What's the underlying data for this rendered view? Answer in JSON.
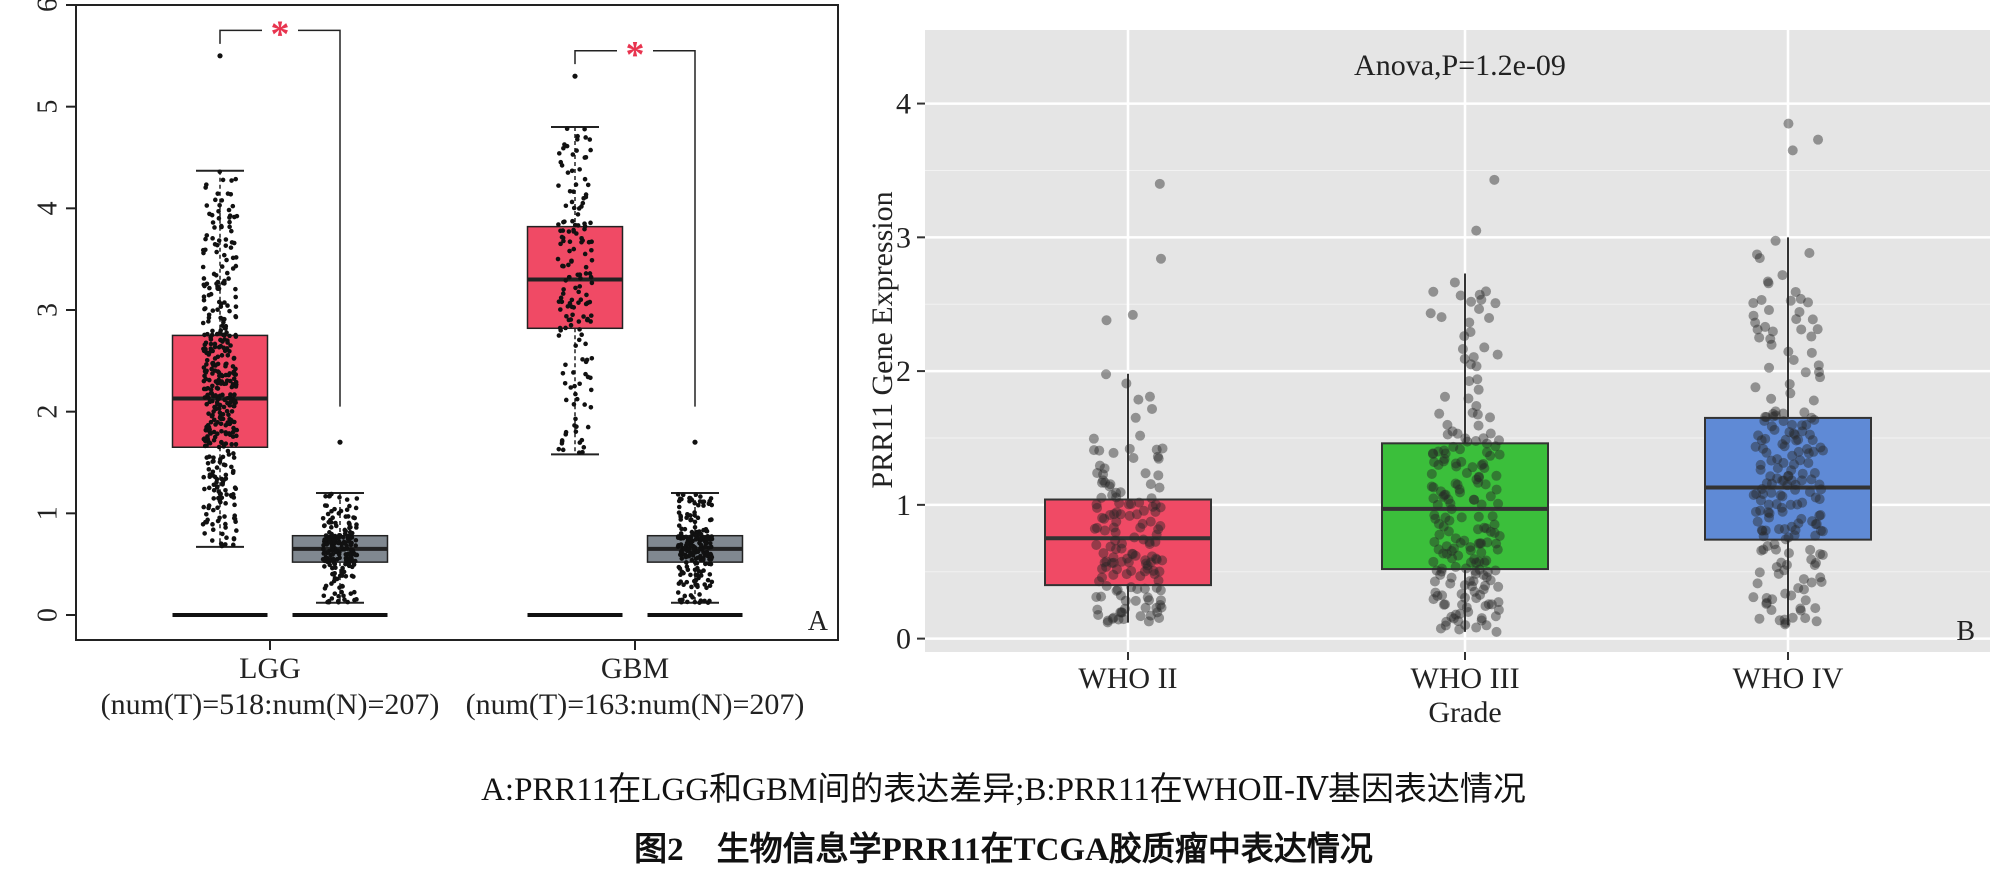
{
  "chart_data": [
    {
      "id": "A",
      "type": "box",
      "panel_label": "A",
      "ylim": [
        0,
        6
      ],
      "yticks": [
        "0",
        "1",
        "2",
        "3",
        "4",
        "5",
        "6"
      ],
      "groups": [
        {
          "name": "LGG",
          "sub_label": "(num(T)=518:num(N)=207)",
          "tumor": {
            "color": "#f04a65",
            "q1": 1.65,
            "median": 2.13,
            "q3": 2.75,
            "whisker_low": 0.67,
            "whisker_high": 4.37,
            "n_points": 518,
            "max_point": 5.5
          },
          "normal": {
            "color": "#808890",
            "q1": 0.52,
            "median": 0.65,
            "q3": 0.78,
            "whisker_low": 0.12,
            "whisker_high": 1.2,
            "n_points": 207,
            "max_point": 1.7
          },
          "significance": "*"
        },
        {
          "name": "GBM",
          "sub_label": "(num(T)=163:num(N)=207)",
          "tumor": {
            "color": "#f04a65",
            "q1": 2.82,
            "median": 3.3,
            "q3": 3.82,
            "whisker_low": 1.58,
            "whisker_high": 4.8,
            "n_points": 163,
            "max_point": 5.3
          },
          "normal": {
            "color": "#808890",
            "q1": 0.52,
            "median": 0.65,
            "q3": 0.78,
            "whisker_low": 0.12,
            "whisker_high": 1.2,
            "n_points": 207,
            "max_point": 1.7
          },
          "significance": "*"
        }
      ]
    },
    {
      "id": "B",
      "type": "box",
      "panel_label": "B",
      "annotation": "Anova,P=1.2e-09",
      "xlabel": "Grade",
      "ylabel": "PRR11 Gene Expression",
      "ylim": [
        -0.1,
        4.55
      ],
      "yticks": [
        "0",
        "1",
        "2",
        "3",
        "4"
      ],
      "grid": true,
      "background": "#e5e5e5",
      "categories": [
        "WHO II",
        "WHO III",
        "WHO IV"
      ],
      "boxes": [
        {
          "color": "#f04a65",
          "q1": 0.4,
          "median": 0.75,
          "q3": 1.04,
          "whisker_low": 0.12,
          "whisker_high": 1.98,
          "outliers": [
            2.38,
            2.42,
            2.84,
            3.4
          ]
        },
        {
          "color": "#3bbf3b",
          "q1": 0.52,
          "median": 0.97,
          "q3": 1.46,
          "whisker_low": 0.05,
          "whisker_high": 2.73,
          "outliers": [
            3.05,
            3.43
          ]
        },
        {
          "color": "#5f8ad6",
          "q1": 0.74,
          "median": 1.13,
          "q3": 1.65,
          "whisker_low": 0.1,
          "whisker_high": 3.0,
          "outliers": [
            3.65,
            3.73,
            3.85
          ]
        }
      ]
    }
  ],
  "caption": {
    "subtitle": "A:PRR11在LGG和GBM间的表达差异;B:PRR11在WHOⅡ-Ⅳ基因表达情况",
    "title": "图2　生物信息学PRR11在TCGA胶质瘤中表达情况"
  }
}
